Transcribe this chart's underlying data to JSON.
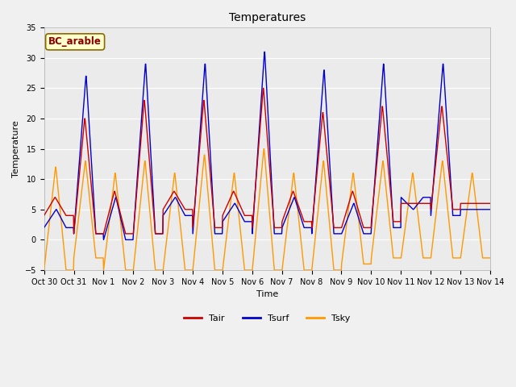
{
  "title": "Temperatures",
  "xlabel": "Time",
  "ylabel": "Temperature",
  "ylim": [
    -5,
    35
  ],
  "background_color": "#f0f0f0",
  "plot_bg_color": "#ebebeb",
  "outer_bg_color": "#f0f0f0",
  "line_colors": {
    "Tair": "#cc0000",
    "Tsurf": "#0000cc",
    "Tsky": "#ff9900"
  },
  "annotation_text": "BC_arable",
  "annotation_color": "#8b0000",
  "annotation_bg": "#ffffcc",
  "annotation_border": "#8b6900",
  "tick_dates": [
    "Oct 30",
    "Oct 31",
    "Nov 1",
    "Nov 2",
    "Nov 3",
    "Nov 4",
    "Nov 5",
    "Nov 6",
    "Nov 7",
    "Nov 8",
    "Nov 9",
    "Nov 10",
    "Nov 11",
    "Nov 12",
    "Nov 13",
    "Nov 14"
  ],
  "n_days": 15,
  "grid_color": "#ffffff",
  "linewidth": 1.0,
  "tick_fontsize": 7.0,
  "title_fontsize": 10,
  "label_fontsize": 8,
  "legend_fontsize": 8
}
